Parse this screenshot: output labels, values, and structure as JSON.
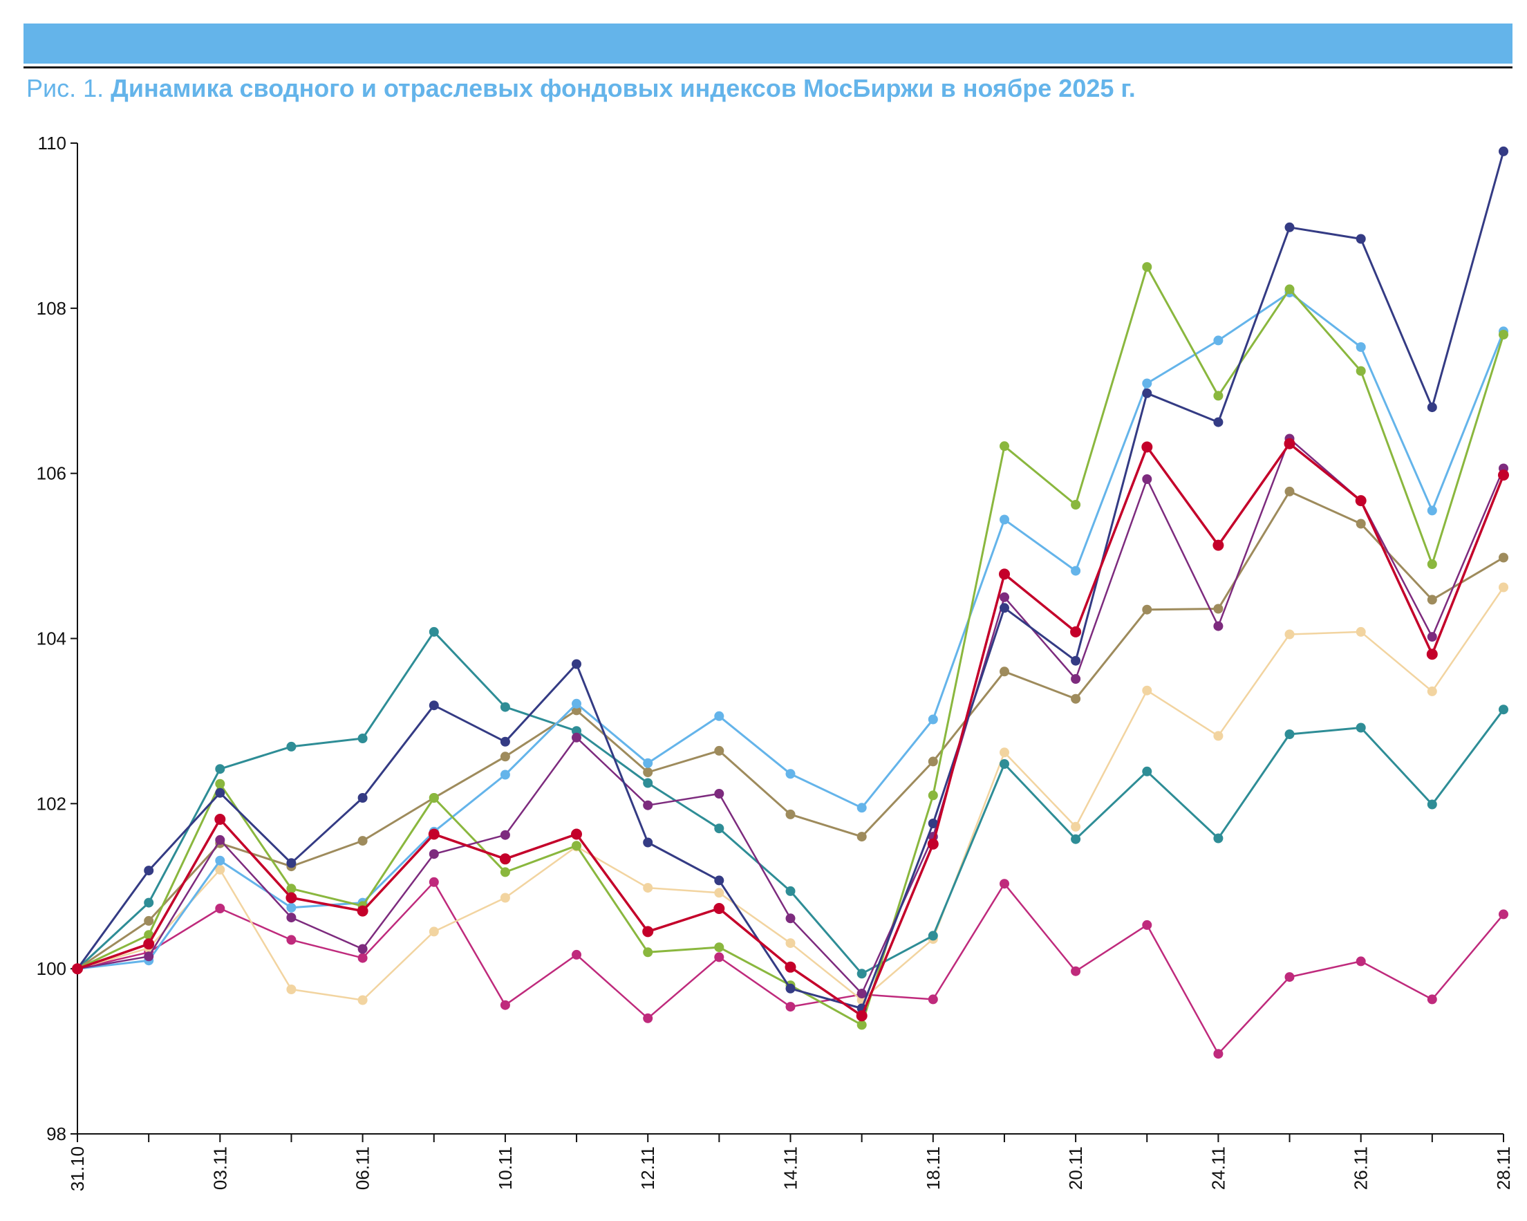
{
  "header": {
    "prefix": "Рис. 1.",
    "title": "Динамика сводного и отраслевых фондовых индексов МосБиржи в ноябре 2025 г."
  },
  "colors": {
    "accent": "#64b4ea",
    "axis": "#111111"
  },
  "chart_data": {
    "type": "line",
    "title": "Динамика сводного и отраслевых фондовых индексов МосБиржи в ноябре 2025 г.",
    "xlabel": "",
    "ylabel": "",
    "ylim": [
      98,
      110
    ],
    "yticks": [
      98,
      100,
      102,
      104,
      106,
      108,
      110
    ],
    "x": [
      "31.10",
      "",
      "03.11",
      "",
      "06.11",
      "",
      "10.11",
      "",
      "12.11",
      "",
      "14.11",
      "",
      "18.11",
      "",
      "20.11",
      "",
      "24.11",
      "",
      "26.11",
      "",
      "28.11"
    ],
    "xtick_labels": [
      "31.10",
      "03.11",
      "06.11",
      "10.11",
      "12.11",
      "14.11",
      "18.11",
      "20.11",
      "24.11",
      "26.11",
      "28.11"
    ],
    "grid": false,
    "legend": "none",
    "series": [
      {
        "color": "#bf2a7c",
        "width": 2.5,
        "values": [
          100,
          100.2,
          100.73,
          100.35,
          100.13,
          101.05,
          99.56,
          100.17,
          99.4,
          100.14,
          99.54,
          99.69,
          99.63,
          101.03,
          99.97,
          100.53,
          98.97,
          99.9,
          100.09,
          99.63,
          100.66
        ]
      },
      {
        "color": "#f2d4a0",
        "width": 2.5,
        "values": [
          100,
          100.25,
          101.2,
          99.75,
          99.62,
          100.45,
          100.86,
          101.48,
          100.98,
          100.92,
          100.31,
          99.62,
          100.36,
          102.62,
          101.72,
          103.37,
          102.82,
          104.05,
          104.08,
          103.36,
          104.62
        ]
      },
      {
        "color": "#2e8d96",
        "width": 3,
        "values": [
          100,
          100.8,
          102.42,
          102.69,
          102.79,
          104.08,
          103.17,
          102.88,
          102.25,
          101.7,
          100.94,
          99.94,
          100.4,
          102.48,
          101.57,
          102.39,
          101.58,
          102.84,
          102.92,
          101.99,
          103.14
        ]
      },
      {
        "color": "#9e8b5c",
        "width": 3,
        "values": [
          100,
          100.58,
          101.52,
          101.24,
          101.55,
          102.07,
          102.57,
          103.13,
          102.38,
          102.64,
          101.87,
          101.6,
          102.51,
          103.6,
          103.27,
          104.35,
          104.36,
          105.78,
          105.39,
          104.47,
          104.98
        ]
      },
      {
        "color": "#64b4ea",
        "width": 3,
        "values": [
          100,
          100.1,
          101.31,
          100.74,
          100.8,
          101.66,
          102.35,
          103.21,
          102.49,
          103.06,
          102.36,
          101.95,
          103.02,
          105.44,
          104.82,
          107.09,
          107.61,
          108.19,
          107.53,
          105.55,
          107.72
        ]
      },
      {
        "color": "#8ab73e",
        "width": 3,
        "values": [
          100,
          100.41,
          102.24,
          100.97,
          100.76,
          102.07,
          101.17,
          101.49,
          100.2,
          100.26,
          99.8,
          99.32,
          102.1,
          106.33,
          105.62,
          108.5,
          106.94,
          108.23,
          107.24,
          104.9,
          107.68
        ]
      },
      {
        "color": "#7d2b7e",
        "width": 2.5,
        "values": [
          100,
          100.15,
          101.56,
          100.62,
          100.24,
          101.39,
          101.62,
          102.8,
          101.98,
          102.12,
          100.61,
          99.7,
          101.6,
          104.5,
          103.51,
          105.93,
          104.15,
          106.42,
          105.67,
          104.02,
          106.06
        ]
      },
      {
        "color": "#343b84",
        "width": 3,
        "values": [
          100,
          101.19,
          102.13,
          101.28,
          102.07,
          103.19,
          102.75,
          103.69,
          101.53,
          101.07,
          99.76,
          99.52,
          101.76,
          104.37,
          103.73,
          106.97,
          106.62,
          108.98,
          108.84,
          106.8,
          109.9
        ]
      },
      {
        "color": "#c4002a",
        "width": 3.5,
        "values": [
          100,
          100.3,
          101.81,
          100.86,
          100.7,
          101.63,
          101.33,
          101.63,
          100.45,
          100.73,
          100.02,
          99.43,
          101.51,
          104.78,
          104.08,
          106.32,
          105.13,
          106.36,
          105.67,
          103.81,
          105.98
        ]
      }
    ]
  }
}
